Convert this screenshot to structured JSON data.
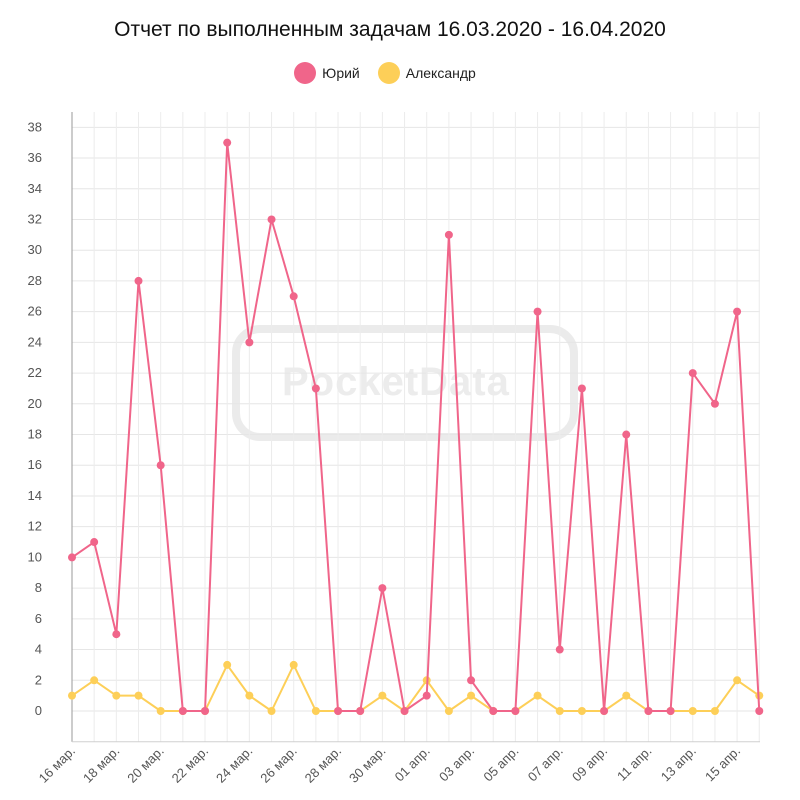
{
  "chart_data": {
    "type": "line",
    "title": "Отчет по выполненным задачам 16.03.2020 - 16.04.2020",
    "xlabel": "",
    "ylabel": "",
    "ylim": [
      -2,
      39
    ],
    "y_ticks": [
      0,
      2,
      4,
      6,
      8,
      10,
      12,
      14,
      16,
      18,
      20,
      22,
      24,
      26,
      28,
      30,
      32,
      34,
      36,
      38
    ],
    "categories": [
      "16 мар.",
      "17 мар.",
      "18 мар.",
      "19 мар.",
      "20 мар.",
      "21 мар.",
      "22 мар.",
      "23 мар.",
      "24 мар.",
      "25 мар.",
      "26 мар.",
      "27 мар.",
      "28 мар.",
      "29 мар.",
      "30 мар.",
      "31 мар.",
      "01 апр.",
      "02 апр.",
      "03 апр.",
      "04 апр.",
      "05 апр.",
      "06 апр.",
      "07 апр.",
      "08 апр.",
      "09 апр.",
      "10 апр.",
      "11 апр.",
      "12 апр.",
      "13 апр.",
      "14 апр.",
      "15 апр.",
      "16 апр."
    ],
    "shown_tick_labels": [
      "16 мар.",
      "18 мар.",
      "20 мар.",
      "22 мар.",
      "24 мар.",
      "26 мар.",
      "28 мар.",
      "30 мар.",
      "01 апр.",
      "03 апр.",
      "05 апр.",
      "07 апр.",
      "09 апр.",
      "11 апр.",
      "13 апр.",
      "15 апр."
    ],
    "legend_position": "top-center",
    "grid": true,
    "series": [
      {
        "name": "Юрий",
        "color": "#f0658a",
        "values": [
          10,
          11,
          5,
          28,
          16,
          0,
          0,
          37,
          24,
          32,
          27,
          21,
          0,
          0,
          8,
          0,
          1,
          31,
          2,
          0,
          0,
          26,
          4,
          21,
          0,
          18,
          0,
          0,
          22,
          20,
          26,
          0
        ]
      },
      {
        "name": "Александр",
        "color": "#fdcf58",
        "values": [
          1,
          2,
          1,
          1,
          0,
          0,
          0,
          3,
          1,
          0,
          3,
          0,
          0,
          0,
          1,
          0,
          2,
          0,
          1,
          0,
          0,
          1,
          0,
          0,
          0,
          1,
          0,
          0,
          0,
          0,
          2,
          1
        ]
      }
    ]
  },
  "watermark": "PocketData"
}
